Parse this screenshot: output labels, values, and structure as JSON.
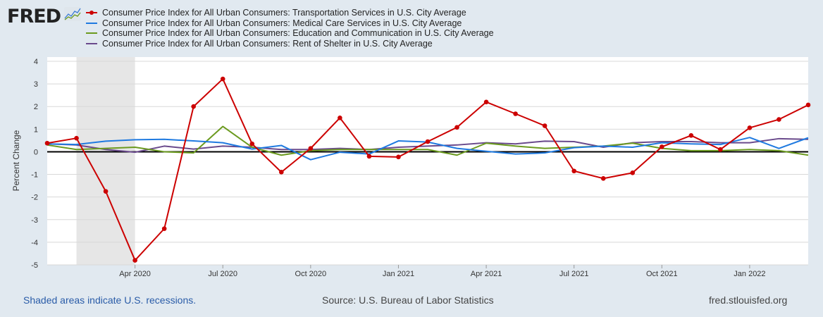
{
  "logo": {
    "text": "FRED"
  },
  "footer": {
    "recession_note": "Shaded areas indicate U.S. recessions.",
    "source": "Source: U.S. Bureau of Labor Statistics",
    "site": "fred.stlouisfed.org"
  },
  "chart_data": {
    "type": "line",
    "title": "",
    "xlabel": "",
    "ylabel": "Percent Change",
    "ylim": [
      -5,
      4
    ],
    "yticks": [
      4,
      3,
      2,
      1,
      0,
      -1,
      -2,
      -3,
      -4,
      -5
    ],
    "grid": true,
    "legend_placement": "top",
    "x": [
      "2020-01",
      "2020-02",
      "2020-03",
      "2020-04",
      "2020-05",
      "2020-06",
      "2020-07",
      "2020-08",
      "2020-09",
      "2020-10",
      "2020-11",
      "2020-12",
      "2021-01",
      "2021-02",
      "2021-03",
      "2021-04",
      "2021-05",
      "2021-06",
      "2021-07",
      "2021-08",
      "2021-09",
      "2021-10",
      "2021-11",
      "2021-12",
      "2022-01",
      "2022-02",
      "2022-03"
    ],
    "xtick_labels": [
      {
        "x": "2020-04",
        "label": "Apr 2020"
      },
      {
        "x": "2020-07",
        "label": "Jul 2020"
      },
      {
        "x": "2020-10",
        "label": "Oct 2020"
      },
      {
        "x": "2021-01",
        "label": "Jan 2021"
      },
      {
        "x": "2021-04",
        "label": "Apr 2021"
      },
      {
        "x": "2021-07",
        "label": "Jul 2021"
      },
      {
        "x": "2021-10",
        "label": "Oct 2021"
      },
      {
        "x": "2022-01",
        "label": "Jan 2022"
      }
    ],
    "recessions": [
      [
        "2020-02",
        "2020-04"
      ]
    ],
    "series": [
      {
        "name": "Consumer Price Index for All Urban Consumers: Transportation Services in U.S. City Average",
        "color": "#cc0000",
        "markers": true,
        "values": [
          0.38,
          0.6,
          -1.75,
          -4.8,
          -3.4,
          2.0,
          3.22,
          0.35,
          -0.9,
          0.15,
          1.5,
          -0.2,
          -0.23,
          0.45,
          1.08,
          2.2,
          1.68,
          1.15,
          -0.85,
          -1.18,
          -0.93,
          0.22,
          0.72,
          0.1,
          1.06,
          1.43,
          2.07
        ]
      },
      {
        "name": "Consumer Price Index for All Urban Consumers: Medical Care Services in U.S. City Average",
        "color": "#1f7ae0",
        "markers": false,
        "values": [
          0.35,
          0.32,
          0.47,
          0.53,
          0.55,
          0.48,
          0.4,
          0.12,
          0.28,
          -0.35,
          -0.02,
          -0.1,
          0.48,
          0.43,
          0.15,
          0.02,
          -0.1,
          -0.05,
          0.18,
          0.25,
          0.2,
          0.4,
          0.35,
          0.32,
          0.63,
          0.15,
          0.62
        ]
      },
      {
        "name": "Consumer Price Index for All Urban Consumers: Education and Communication in U.S. City Average",
        "color": "#6b9a1f",
        "markers": false,
        "values": [
          0.3,
          0.1,
          0.15,
          0.2,
          0.0,
          -0.05,
          1.12,
          0.2,
          -0.15,
          0.05,
          0.1,
          0.1,
          0.1,
          0.1,
          -0.15,
          0.38,
          0.25,
          0.15,
          0.2,
          0.25,
          0.38,
          0.15,
          0.05,
          0.05,
          0.1,
          0.05,
          -0.15
        ]
      },
      {
        "name": "Consumer Price Index for All Urban Consumers: Rent of Shelter in U.S. City Average",
        "color": "#6a4a8c",
        "markers": false,
        "values": [
          0.35,
          0.3,
          0.1,
          -0.02,
          0.25,
          0.12,
          0.25,
          0.2,
          0.1,
          0.1,
          0.15,
          0.1,
          0.2,
          0.25,
          0.3,
          0.4,
          0.35,
          0.47,
          0.45,
          0.2,
          0.4,
          0.45,
          0.45,
          0.4,
          0.4,
          0.58,
          0.55
        ]
      }
    ]
  }
}
